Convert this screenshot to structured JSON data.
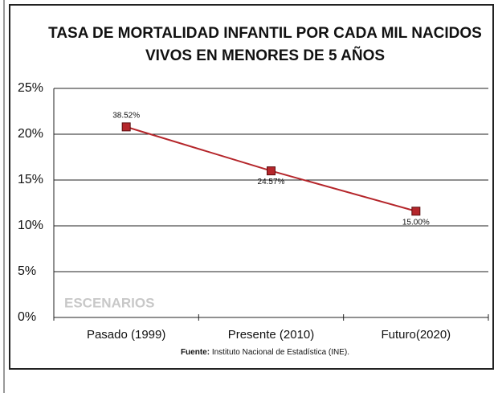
{
  "chart_data": {
    "type": "line",
    "title": [
      "TASA DE MORTALIDAD INFANTIL POR CADA MIL NACIDOS",
      "VIVOS EN MENORES DE 5 AÑOS"
    ],
    "categories": [
      "Pasado (1999)",
      "Presente (2010)",
      "Futuro(2020)"
    ],
    "series": [
      {
        "color": "#b5262b",
        "values": [
          20.8,
          16.0,
          11.6
        ]
      }
    ],
    "annotations": [
      "38.52%",
      "24.57%",
      "15.00%"
    ],
    "axis_note": "ESCENARIOS",
    "ylim": [
      0,
      25
    ],
    "yticks": [
      {
        "value": 0,
        "label": "0%"
      },
      {
        "value": 5,
        "label": "5%"
      },
      {
        "value": 10,
        "label": "10%"
      },
      {
        "value": 15,
        "label": "15%"
      },
      {
        "value": 20,
        "label": "20%"
      },
      {
        "value": 25,
        "label": "25%"
      }
    ],
    "grid": true,
    "source_label": "Fuente:",
    "source": "Instituto Nacional de Estadística (INE)."
  }
}
